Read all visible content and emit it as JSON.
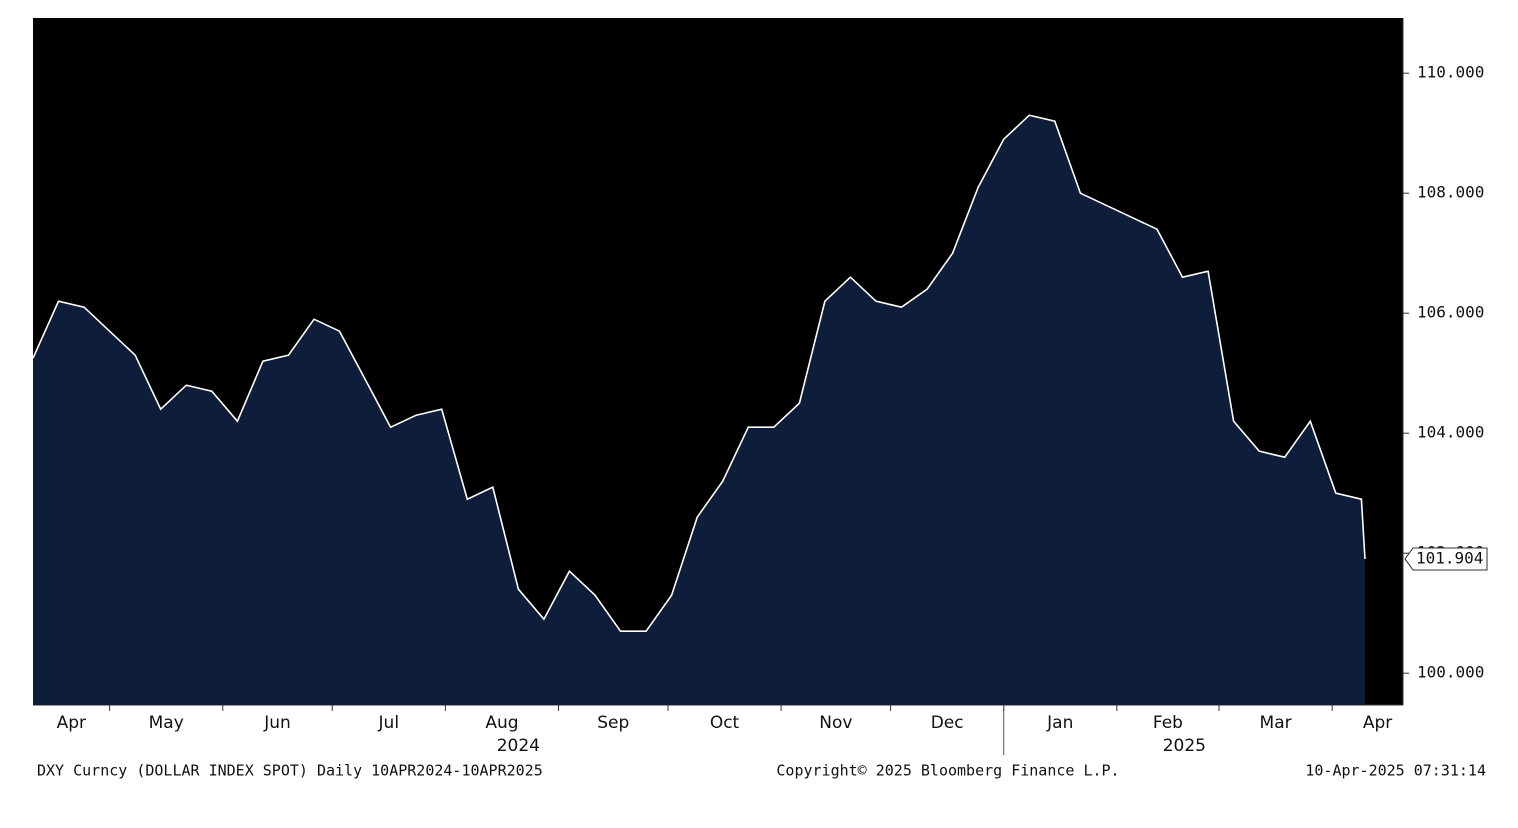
{
  "chart_data": {
    "type": "area",
    "title": "DXY Curncy (DOLLAR INDEX SPOT)  Daily 10APR2024-10APR2025",
    "annotations": [
      "Copyright© 2025 Bloomberg Finance L.P.",
      "10-Apr-2025 07:31:14"
    ],
    "x": [
      "2024-04-10",
      "2024-04-17",
      "2024-04-24",
      "2024-05-01",
      "2024-05-08",
      "2024-05-15",
      "2024-05-22",
      "2024-05-29",
      "2024-06-05",
      "2024-06-12",
      "2024-06-19",
      "2024-06-26",
      "2024-07-03",
      "2024-07-10",
      "2024-07-17",
      "2024-07-24",
      "2024-07-31",
      "2024-08-07",
      "2024-08-14",
      "2024-08-21",
      "2024-08-28",
      "2024-09-04",
      "2024-09-11",
      "2024-09-18",
      "2024-09-25",
      "2024-10-02",
      "2024-10-09",
      "2024-10-16",
      "2024-10-23",
      "2024-10-30",
      "2024-11-06",
      "2024-11-13",
      "2024-11-20",
      "2024-11-27",
      "2024-12-04",
      "2024-12-11",
      "2024-12-18",
      "2024-12-25",
      "2025-01-01",
      "2025-01-08",
      "2025-01-15",
      "2025-01-22",
      "2025-01-29",
      "2025-02-05",
      "2025-02-12",
      "2025-02-19",
      "2025-02-26",
      "2025-03-05",
      "2025-03-12",
      "2025-03-19",
      "2025-03-26",
      "2025-04-02",
      "2025-04-09",
      "2025-04-10"
    ],
    "series": [
      {
        "name": "DXY Curncy",
        "color": "#ffffff",
        "fill": "#0e1d3a",
        "values": [
          105.25,
          106.2,
          106.1,
          105.7,
          105.3,
          104.4,
          104.8,
          104.7,
          104.2,
          105.2,
          105.3,
          105.9,
          105.7,
          104.9,
          104.1,
          104.3,
          104.4,
          102.9,
          103.1,
          101.4,
          100.9,
          101.7,
          101.3,
          100.7,
          100.7,
          101.3,
          102.6,
          103.2,
          104.1,
          104.1,
          104.5,
          106.2,
          106.6,
          106.2,
          106.1,
          106.4,
          107.0,
          108.1,
          108.9,
          109.3,
          109.2,
          108.0,
          107.8,
          107.6,
          107.4,
          106.6,
          106.7,
          104.2,
          103.7,
          103.6,
          104.2,
          103.0,
          102.9,
          101.904
        ],
        "value_labels": [
          null,
          null,
          null,
          null,
          null,
          null,
          null,
          null,
          null,
          null,
          null,
          null,
          null,
          null,
          null,
          null,
          null,
          null,
          null,
          null,
          null,
          null,
          null,
          null,
          null,
          null,
          null,
          null,
          null,
          null,
          null,
          null,
          null,
          null,
          null,
          null,
          null,
          null,
          null,
          null,
          null,
          null,
          null,
          null,
          null,
          null,
          null,
          null,
          null,
          null,
          null,
          null,
          null,
          "101.904"
        ]
      }
    ],
    "xlim": [
      "2024-04-10",
      "2025-04-10"
    ],
    "xticks": [
      {
        "value": "2024-04-01",
        "label": "Apr"
      },
      {
        "value": "2024-05-01",
        "label": "May"
      },
      {
        "value": "2024-06-01",
        "label": "Jun"
      },
      {
        "value": "2024-07-01",
        "label": "Jul"
      },
      {
        "value": "2024-08-01",
        "label": "Aug"
      },
      {
        "value": "2024-09-01",
        "label": "Sep"
      },
      {
        "value": "2024-10-01",
        "label": "Oct"
      },
      {
        "value": "2024-11-01",
        "label": "Nov"
      },
      {
        "value": "2024-12-01",
        "label": "Dec"
      },
      {
        "value": "2025-01-01",
        "label": "Jan"
      },
      {
        "value": "2025-02-01",
        "label": "Feb"
      },
      {
        "value": "2025-03-01",
        "label": "Mar"
      },
      {
        "value": "2025-04-01",
        "label": "Apr"
      }
    ],
    "years": [
      "2024",
      "2025"
    ],
    "ylim": [
      99.47,
      110.92
    ],
    "yticks": [
      {
        "value": 100,
        "label": "100.000"
      },
      {
        "value": 102,
        "label": "102.000"
      },
      {
        "value": 104,
        "label": "104.000"
      },
      {
        "value": 106,
        "label": "106.000"
      },
      {
        "value": 108,
        "label": "108.000"
      },
      {
        "value": 110,
        "label": "110.000"
      }
    ],
    "plot_background": "#000000"
  }
}
